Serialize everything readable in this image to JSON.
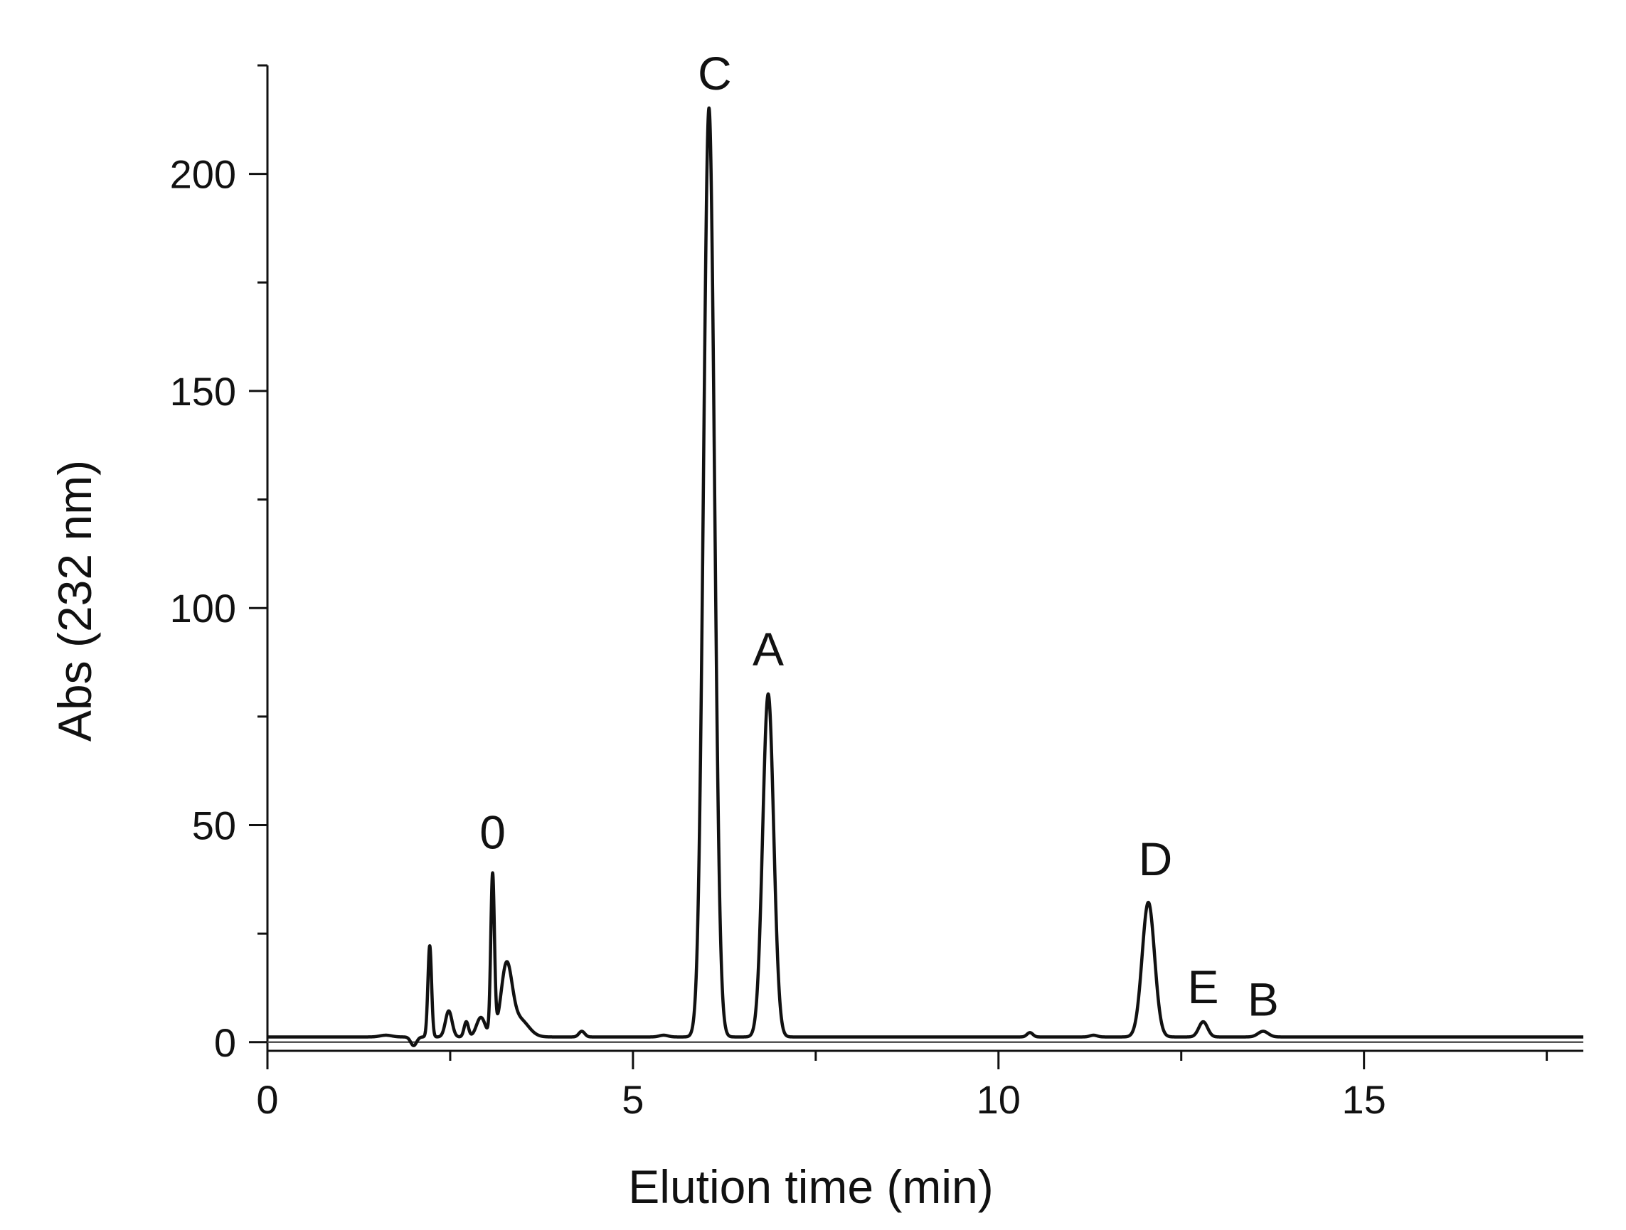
{
  "chart_data": {
    "type": "line",
    "title": "",
    "xlabel": "Elution time (min)",
    "ylabel": "Abs (232 nm)",
    "xlim": [
      0,
      18
    ],
    "ylim": [
      -2,
      225
    ],
    "x_ticks": [
      0,
      5,
      10,
      15
    ],
    "x_tick_labels": [
      "0",
      "5",
      "10",
      "15"
    ],
    "x_minor_step": 2.5,
    "y_ticks": [
      0,
      50,
      100,
      150,
      200
    ],
    "y_tick_labels": [
      "0",
      "50",
      "100",
      "150",
      "200"
    ],
    "y_minor_step": 25,
    "grid": false,
    "legend": "none",
    "line_color": "#111111",
    "baseline": 1.2,
    "peaks": [
      {
        "label": "",
        "rt": 1.62,
        "height": 0.4,
        "sigma": 0.08
      },
      {
        "label": "",
        "rt": 2.0,
        "height": -2.0,
        "sigma": 0.04
      },
      {
        "label": "",
        "rt": 2.22,
        "height": 21.0,
        "sigma": 0.025
      },
      {
        "label": "",
        "rt": 2.48,
        "height": 6.0,
        "sigma": 0.045
      },
      {
        "label": "",
        "rt": 2.72,
        "height": 3.5,
        "sigma": 0.03
      },
      {
        "label": "",
        "rt": 2.92,
        "height": 4.5,
        "sigma": 0.06
      },
      {
        "label": "0",
        "rt": 3.08,
        "height": 37.0,
        "sigma": 0.025
      },
      {
        "label": "",
        "rt": 3.27,
        "height": 16.0,
        "sigma": 0.075
      },
      {
        "label": "",
        "rt": 3.45,
        "height": 4.0,
        "sigma": 0.12
      },
      {
        "label": "",
        "rt": 4.3,
        "height": 1.3,
        "sigma": 0.04
      },
      {
        "label": "",
        "rt": 5.42,
        "height": 0.4,
        "sigma": 0.06
      },
      {
        "label": "C",
        "rt": 6.04,
        "height": 214.0,
        "sigma": 0.075
      },
      {
        "label": "A",
        "rt": 6.85,
        "height": 79.0,
        "sigma": 0.075
      },
      {
        "label": "",
        "rt": 10.43,
        "height": 1.0,
        "sigma": 0.04
      },
      {
        "label": "",
        "rt": 11.3,
        "height": 0.4,
        "sigma": 0.05
      },
      {
        "label": "D",
        "rt": 12.05,
        "height": 31.0,
        "sigma": 0.085
      },
      {
        "label": "E",
        "rt": 12.8,
        "height": 3.5,
        "sigma": 0.06
      },
      {
        "label": "B",
        "rt": 13.62,
        "height": 1.3,
        "sigma": 0.07
      }
    ],
    "annotations": [
      "0",
      "C",
      "A",
      "D",
      "E",
      "B"
    ]
  }
}
